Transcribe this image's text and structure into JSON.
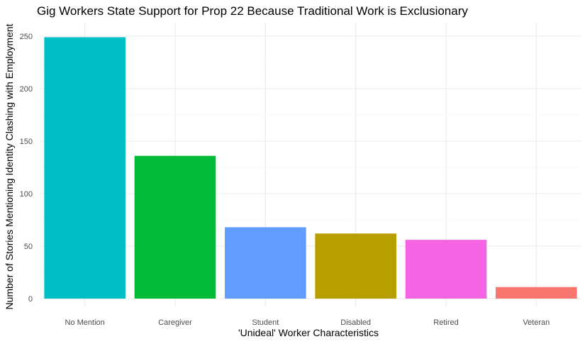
{
  "chart_data": {
    "type": "bar",
    "title": "Gig Workers State Support for Prop 22 Because Traditional Work is Exclusionary",
    "xlabel": "'Unideal' Worker Characteristics",
    "ylabel": "Number of Stories Mentioning Identity Clashing with Employment",
    "categories": [
      "No Mention",
      "Caregiver",
      "Student",
      "Disabled",
      "Retired",
      "Veteran"
    ],
    "values": [
      249,
      136,
      68,
      62,
      56,
      11
    ],
    "colors": [
      "#00BFC4",
      "#00BA38",
      "#619CFF",
      "#B79F00",
      "#F564E3",
      "#F8766D"
    ],
    "yticks": [
      0,
      50,
      100,
      150,
      200,
      250
    ],
    "ylim": [
      0,
      262
    ],
    "grid": true,
    "legend": "none"
  }
}
